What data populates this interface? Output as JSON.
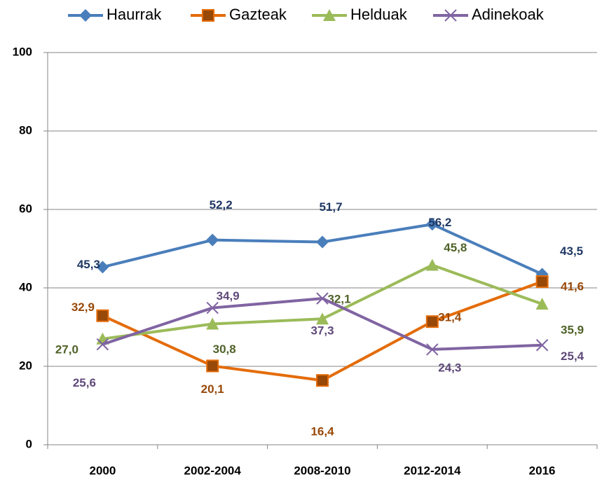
{
  "chart_data": {
    "type": "line",
    "categories": [
      "2000",
      "2002-2004",
      "2008-2010",
      "2012-2014",
      "2016"
    ],
    "series": [
      {
        "name": "Haurrak",
        "color": "#4a7ebb",
        "label_color": "#1f3864",
        "values": [
          45.3,
          52.2,
          51.7,
          56.2,
          43.5
        ],
        "value_labels": [
          "45,3",
          "52,2",
          "51,7",
          "56,2",
          "43,5"
        ]
      },
      {
        "name": "Gazteak",
        "color": "#e46c0a",
        "label_color": "#984807",
        "values": [
          32.9,
          20.1,
          16.4,
          31.4,
          41.6
        ],
        "value_labels": [
          "32,9",
          "20,1",
          "16,4",
          "31,4",
          "41,6"
        ]
      },
      {
        "name": "Helduak",
        "color": "#9bbb59",
        "label_color": "#4f6228",
        "values": [
          27.0,
          30.8,
          32.1,
          45.8,
          35.9
        ],
        "value_labels": [
          "27,0",
          "30,8",
          "32,1",
          "45,8",
          "35,9"
        ]
      },
      {
        "name": "Adinekoak",
        "color": "#8064a2",
        "label_color": "#5f497a",
        "values": [
          25.6,
          34.9,
          37.3,
          24.3,
          25.4
        ],
        "value_labels": [
          "25,6",
          "34,9",
          "37,3",
          "24,3",
          "25,4"
        ]
      }
    ],
    "ylim": [
      0,
      100
    ],
    "yticks": [
      0,
      20,
      40,
      60,
      80,
      100
    ],
    "grid": true,
    "legend": "top"
  }
}
